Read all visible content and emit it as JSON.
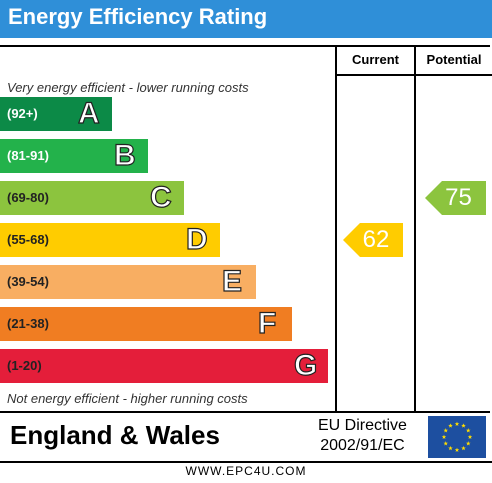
{
  "header": {
    "title": "Energy Efficiency Rating"
  },
  "columns": {
    "current": "Current",
    "potential": "Potential"
  },
  "notes": {
    "top": "Very energy efficient - lower running costs",
    "bottom": "Not energy efficient - higher running costs"
  },
  "footer": {
    "region": "England & Wales",
    "directive_line1": "EU Directive",
    "directive_line2": "2002/91/EC",
    "flag": "eu-flag-icon",
    "site": "WWW.EPC4U.COM"
  },
  "chart_data": {
    "type": "bar",
    "title": "Energy Efficiency Rating",
    "bands": [
      {
        "range": "(92+)",
        "letter": "A",
        "color": "#0c8a47"
      },
      {
        "range": "(81-91)",
        "letter": "B",
        "color": "#23b24b"
      },
      {
        "range": "(69-80)",
        "letter": "C",
        "color": "#8cc43e"
      },
      {
        "range": "(55-68)",
        "letter": "D",
        "color": "#ffcc00"
      },
      {
        "range": "(39-54)",
        "letter": "E",
        "color": "#f8ae62"
      },
      {
        "range": "(21-38)",
        "letter": "F",
        "color": "#f07d22"
      },
      {
        "range": "(1-20)",
        "letter": "G",
        "color": "#e41e3a"
      }
    ],
    "current": {
      "value": "62",
      "band": "D",
      "color": "#ffcc00"
    },
    "potential": {
      "value": "75",
      "band": "C",
      "color": "#8cc43e"
    }
  }
}
